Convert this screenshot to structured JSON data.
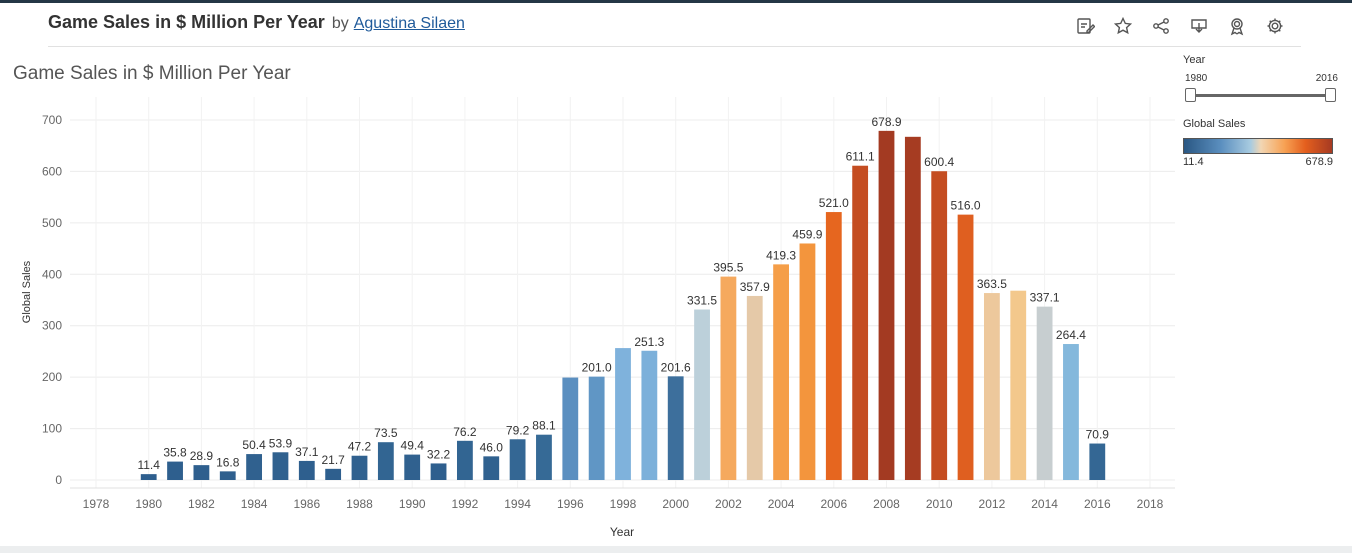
{
  "header": {
    "title": "Game Sales in $ Million Per Year",
    "by": "by",
    "author": "Agustina Silaen"
  },
  "toolbar": {
    "icons": [
      "edit-icon",
      "star-icon",
      "share-icon",
      "download-icon",
      "award-icon",
      "gear-icon"
    ]
  },
  "filter": {
    "label": "Year",
    "min": "1980",
    "max": "2016"
  },
  "legend": {
    "title": "Global Sales",
    "min": "11.4",
    "max": "678.9",
    "colors": [
      "#2a5783",
      "#5b8fbf",
      "#a8cbe0",
      "#f2d6b3",
      "#f7a153",
      "#e45f1e",
      "#a63a22"
    ]
  },
  "chart_data": {
    "type": "bar",
    "title": "Game Sales in $ Million Per Year",
    "xlabel": "Year",
    "ylabel": "Global Sales",
    "xlim": [
      1978,
      2018
    ],
    "ylim": [
      0,
      700
    ],
    "x_ticks": [
      1978,
      1980,
      1982,
      1984,
      1986,
      1988,
      1990,
      1992,
      1994,
      1996,
      1998,
      2000,
      2002,
      2004,
      2006,
      2008,
      2010,
      2012,
      2014,
      2016,
      2018
    ],
    "y_ticks": [
      0,
      100,
      200,
      300,
      400,
      500,
      600,
      700
    ],
    "grid": true,
    "bars": [
      {
        "year": 1980,
        "value": 11.4,
        "label": "11.4",
        "color": "#2e5f8e"
      },
      {
        "year": 1981,
        "value": 35.8,
        "label": "35.8",
        "color": "#2e5f8e"
      },
      {
        "year": 1982,
        "value": 28.9,
        "label": "28.9",
        "color": "#2e5f8e"
      },
      {
        "year": 1983,
        "value": 16.8,
        "label": "16.8",
        "color": "#2e5f8e"
      },
      {
        "year": 1984,
        "value": 50.4,
        "label": "50.4",
        "color": "#30618f"
      },
      {
        "year": 1985,
        "value": 53.9,
        "label": "53.9",
        "color": "#30618f"
      },
      {
        "year": 1986,
        "value": 37.1,
        "label": "37.1",
        "color": "#2e5f8e"
      },
      {
        "year": 1987,
        "value": 21.7,
        "label": "21.7",
        "color": "#2e5f8e"
      },
      {
        "year": 1988,
        "value": 47.2,
        "label": "47.2",
        "color": "#30618f"
      },
      {
        "year": 1989,
        "value": 73.5,
        "label": "73.5",
        "color": "#326592"
      },
      {
        "year": 1990,
        "value": 49.4,
        "label": "49.4",
        "color": "#30618f"
      },
      {
        "year": 1991,
        "value": 32.2,
        "label": "32.2",
        "color": "#2e5f8e"
      },
      {
        "year": 1992,
        "value": 76.2,
        "label": "76.2",
        "color": "#326592"
      },
      {
        "year": 1993,
        "value": 46.0,
        "label": "46.0",
        "color": "#30618f"
      },
      {
        "year": 1994,
        "value": 79.2,
        "label": "79.2",
        "color": "#346794"
      },
      {
        "year": 1995,
        "value": 88.1,
        "label": "88.1",
        "color": "#366a96"
      },
      {
        "year": 1996,
        "value": 199.2,
        "label": "",
        "color": "#5b8fc0"
      },
      {
        "year": 1997,
        "value": 201.0,
        "label": "201.0",
        "color": "#6096c5"
      },
      {
        "year": 1998,
        "value": 256.5,
        "label": "",
        "color": "#7fb2dc"
      },
      {
        "year": 1999,
        "value": 251.3,
        "label": "251.3",
        "color": "#7cb0da"
      },
      {
        "year": 2000,
        "value": 201.6,
        "label": "201.6",
        "color": "#3d6f9c"
      },
      {
        "year": 2001,
        "value": 331.5,
        "label": "331.5",
        "color": "#bcd0da"
      },
      {
        "year": 2002,
        "value": 395.5,
        "label": "395.5",
        "color": "#f5a95e"
      },
      {
        "year": 2003,
        "value": 357.9,
        "label": "357.9",
        "color": "#e5c9a8"
      },
      {
        "year": 2004,
        "value": 419.3,
        "label": "419.3",
        "color": "#f59e48"
      },
      {
        "year": 2005,
        "value": 459.9,
        "label": "459.9",
        "color": "#f3953d"
      },
      {
        "year": 2006,
        "value": 521.0,
        "label": "521.0",
        "color": "#e6661f"
      },
      {
        "year": 2007,
        "value": 611.1,
        "label": "611.1",
        "color": "#c44d21"
      },
      {
        "year": 2008,
        "value": 678.9,
        "label": "678.9",
        "color": "#a33a22"
      },
      {
        "year": 2009,
        "value": 667.3,
        "label": "",
        "color": "#a63c22"
      },
      {
        "year": 2010,
        "value": 600.4,
        "label": "600.4",
        "color": "#c44d21"
      },
      {
        "year": 2011,
        "value": 516.0,
        "label": "516.0",
        "color": "#df5f20"
      },
      {
        "year": 2012,
        "value": 363.5,
        "label": "363.5",
        "color": "#edc89c"
      },
      {
        "year": 2013,
        "value": 368.1,
        "label": "",
        "color": "#f3c88c"
      },
      {
        "year": 2014,
        "value": 337.1,
        "label": "337.1",
        "color": "#c7ced0"
      },
      {
        "year": 2015,
        "value": 264.4,
        "label": "264.4",
        "color": "#84b8dc"
      },
      {
        "year": 2016,
        "value": 70.9,
        "label": "70.9",
        "color": "#346794"
      }
    ]
  }
}
